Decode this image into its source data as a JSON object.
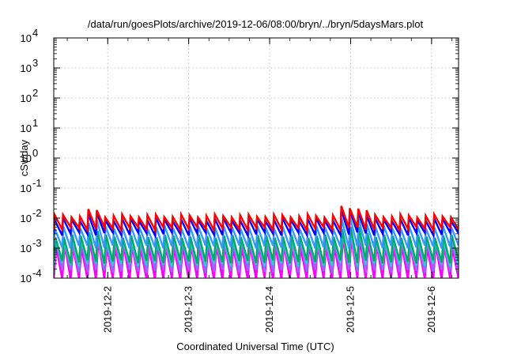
{
  "chart_data": {
    "type": "line",
    "title": "/data/run/goesPlots/archive/2019-12-06/08:00/bryn/../bryn/5daysMars.plot",
    "xlabel": "Coordinated Universal Time (UTC)",
    "ylabel": "cSv/day",
    "y_scale": "log",
    "ylim": [
      0.0001,
      10000
    ],
    "y_ticks": [
      {
        "base": "10",
        "exp": "-4"
      },
      {
        "base": "10",
        "exp": "-3"
      },
      {
        "base": "10",
        "exp": "-2"
      },
      {
        "base": "10",
        "exp": "-1"
      },
      {
        "base": "10",
        "exp": "0"
      },
      {
        "base": "10",
        "exp": "1"
      },
      {
        "base": "10",
        "exp": "2"
      },
      {
        "base": "10",
        "exp": "3"
      },
      {
        "base": "10",
        "exp": "4"
      }
    ],
    "xlim": [
      "2019-12-01T08:00",
      "2019-12-06T08:00"
    ],
    "x_ticks": [
      "2019-12-2",
      "2019-12-3",
      "2019-12-4",
      "2019-12-5",
      "2019-12-6"
    ],
    "grid": true,
    "legend": "none",
    "cycle_hours": 2.5,
    "series": [
      {
        "color": "#ff0000",
        "peak": 0.012,
        "trough": 0.0045,
        "lag": 0.1
      },
      {
        "color": "#0000ff",
        "peak": 0.009,
        "trough": 0.003,
        "lag": 0.1
      },
      {
        "color": "#3399ff",
        "peak": 0.005,
        "trough": 0.0011,
        "lag": 0.14
      },
      {
        "color": "#00aa66",
        "peak": 0.0025,
        "trough": 0.00035,
        "lag": 0.2
      },
      {
        "color": "#33cccc",
        "peak": 0.002,
        "trough": 0.00028,
        "lag": 0.22
      },
      {
        "color": "#9966ff",
        "peak": 0.0016,
        "trough": 0.00017,
        "lag": 0.26
      },
      {
        "color": "#ff00ff",
        "peak": 0.0013,
        "trough": 0.00011,
        "lag": 0.28
      },
      {
        "color": "#dd00dd",
        "peak": 0.0011,
        "trough": 9e-05,
        "lag": 0.3
      }
    ],
    "bursts": [
      {
        "time": "2019-12-01T19:00",
        "factor": 1.5
      },
      {
        "time": "2019-12-04T23:30",
        "factor": 1.9
      },
      {
        "time": "2019-12-05T03:00",
        "factor": 1.4
      }
    ]
  }
}
